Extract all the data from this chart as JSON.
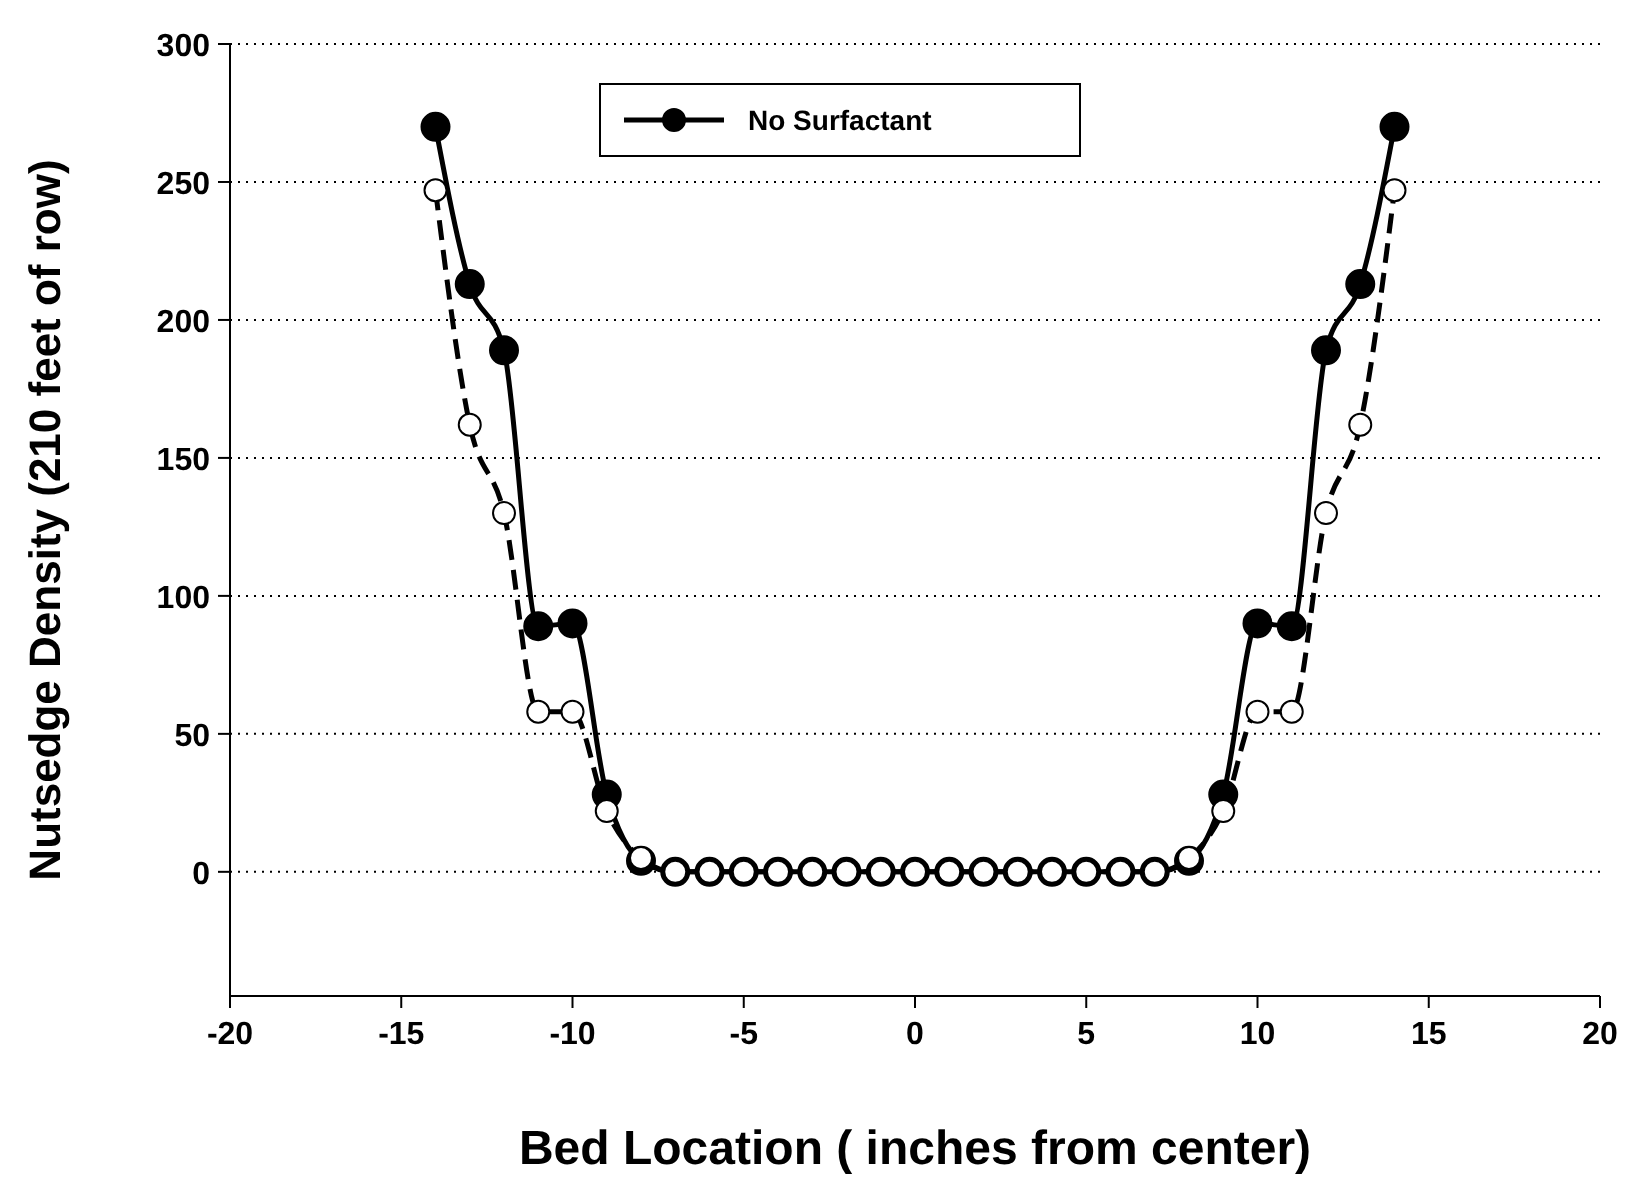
{
  "chart_data": {
    "type": "line",
    "xlabel": "Bed Location ( inches from center)",
    "ylabel": "Nutsedge Density (210 feet of row)",
    "x": [
      -14,
      -13,
      -12,
      -11,
      -10,
      -9,
      -8,
      -7,
      -6,
      -5,
      -4,
      -3,
      -2,
      -1,
      0,
      1,
      2,
      3,
      4,
      5,
      6,
      7,
      8,
      9,
      10,
      11,
      12,
      13,
      14
    ],
    "series": [
      {
        "name": "No Surfactant",
        "color": "#000000",
        "line_style": "solid",
        "values": [
          270,
          213,
          189,
          89,
          90,
          28,
          4,
          0,
          0,
          0,
          0,
          0,
          0,
          0,
          0,
          0,
          0,
          0,
          0,
          0,
          0,
          0,
          4,
          28,
          90,
          89,
          189,
          213,
          270
        ]
      },
      {
        "color": "#000000",
        "line_style": "dashed",
        "values": [
          247,
          162,
          130,
          58,
          58,
          22,
          5,
          0,
          0,
          0,
          0,
          0,
          0,
          0,
          0,
          0,
          0,
          0,
          0,
          0,
          0,
          0,
          5,
          22,
          58,
          58,
          130,
          162,
          247
        ]
      }
    ],
    "xlim": [
      -20,
      20
    ],
    "xticks": [
      -20,
      -15,
      -10,
      -5,
      0,
      5,
      10,
      15,
      20
    ],
    "ylim": [
      -45,
      300
    ],
    "yticks": [
      0,
      50,
      100,
      150,
      200,
      250,
      300
    ],
    "grid": "y",
    "legend": "top",
    "marker": "circle"
  }
}
